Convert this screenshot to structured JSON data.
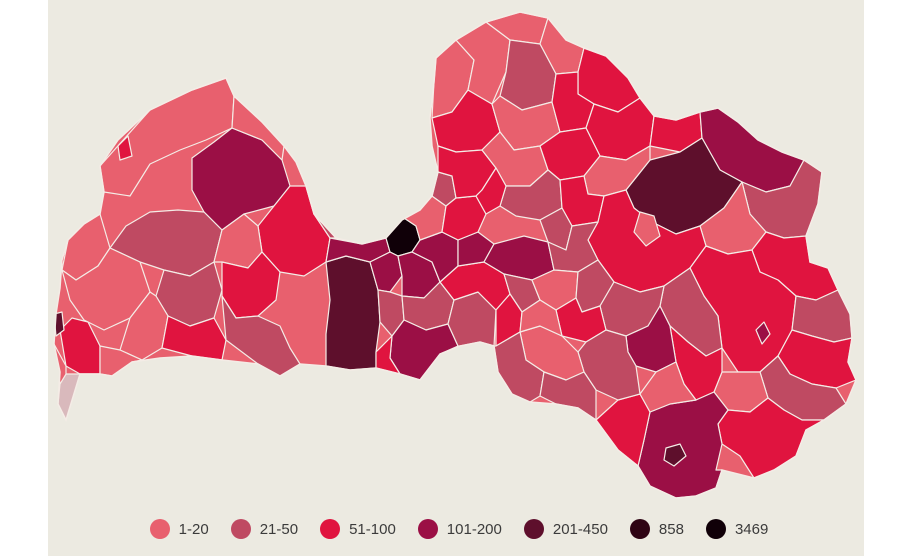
{
  "legend": {
    "items": [
      {
        "label": "1-20",
        "color": "#e8606e"
      },
      {
        "label": "21-50",
        "color": "#bf4a62"
      },
      {
        "label": "51-100",
        "color": "#e0143f"
      },
      {
        "label": "101-200",
        "color": "#9b0f45"
      },
      {
        "label": "201-450",
        "color": "#5e0f2c"
      },
      {
        "label": "858",
        "color": "#2f0414"
      },
      {
        "label": "3469",
        "color": "#100008"
      }
    ]
  },
  "colors": {
    "background": "#eceae1",
    "border": "#f4ece6",
    "no_data": "#d9b9bc"
  }
}
